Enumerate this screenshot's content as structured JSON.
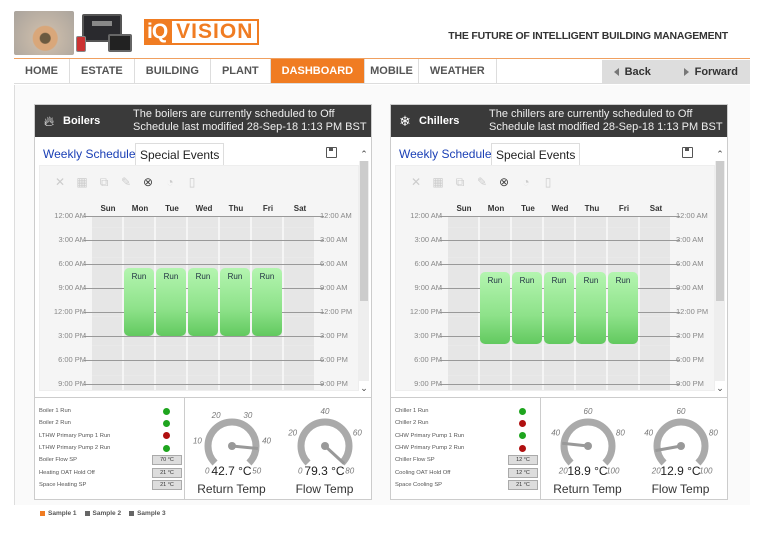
{
  "header": {
    "logo_iq": "iQ",
    "logo_vision": "VISION",
    "tagline": "THE FUTURE OF INTELLIGENT BUILDING MANAGEMENT"
  },
  "nav": {
    "items": [
      "HOME",
      "ESTATE",
      "BUILDING",
      "PLANT",
      "DASHBOARD",
      "MOBILE",
      "WEATHER"
    ],
    "active": "DASHBOARD",
    "back_label": "Back",
    "forward_label": "Forward"
  },
  "colors": {
    "accent": "#f07c22",
    "title_bar": "#3a3a3a",
    "run_green": "#8ee28a",
    "status_green": "#1ea51e",
    "status_red": "#b01010"
  },
  "schedule_common": {
    "tab_weekly": "Weekly Schedule",
    "tab_special": "Special Events",
    "days": [
      "Sun",
      "Mon",
      "Tue",
      "Wed",
      "Thu",
      "Fri",
      "Sat"
    ],
    "times": [
      "12:00 AM",
      "3:00 AM",
      "6:00 AM",
      "9:00 AM",
      "12:00 PM",
      "3:00 PM",
      "6:00 PM",
      "9:00 PM"
    ],
    "toolbar_icons": [
      "delete-icon",
      "table-icon",
      "copy-icon",
      "edit-icon",
      "clear-icon",
      "toggle-icon",
      "paste-icon"
    ]
  },
  "boilers": {
    "title": "Boilers",
    "msg1": "The boilers are currently scheduled to Off",
    "msg2": "Schedule last modified 28-Sep-18 1:13 PM BST",
    "run_label": "Run",
    "run_days": [
      "Mon",
      "Tue",
      "Wed",
      "Thu",
      "Fri"
    ],
    "run_start": "6:30 AM",
    "run_end": "3:00 PM",
    "status": [
      {
        "label": "Boiler 1 Run",
        "type": "dot",
        "state": "green"
      },
      {
        "label": "Boiler 2 Run",
        "type": "dot",
        "state": "green"
      },
      {
        "label": "LTHW Primary Pump 1 Run",
        "type": "dot",
        "state": "red"
      },
      {
        "label": "LTHW Primary Pump 2 Run",
        "type": "dot",
        "state": "green"
      },
      {
        "label": "Boiler Flow SP",
        "type": "value",
        "value": "70 °C"
      },
      {
        "label": "Heating OAT Hold Off",
        "type": "value",
        "value": "21 °C"
      },
      {
        "label": "Space Heating SP",
        "type": "value",
        "value": "21 °C"
      }
    ],
    "gauges": [
      {
        "label": "Return Temp",
        "value": "42.7 °C",
        "num": 42.7,
        "min": 0,
        "max": 50,
        "ticks": [
          "0",
          "10",
          "20",
          "30",
          "40",
          "50"
        ]
      },
      {
        "label": "Flow Temp",
        "value": "79.3 °C",
        "num": 79.3,
        "min": 0,
        "max": 80,
        "ticks": [
          "0",
          "20",
          "40",
          "60",
          "80"
        ]
      }
    ]
  },
  "chillers": {
    "title": "Chillers",
    "msg1": "The chillers are currently scheduled to Off",
    "msg2": "Schedule last modified 28-Sep-18 1:13 PM BST",
    "run_label": "Run",
    "run_days": [
      "Mon",
      "Tue",
      "Wed",
      "Thu",
      "Fri"
    ],
    "run_start": "7:00 AM",
    "run_end": "4:00 PM",
    "status": [
      {
        "label": "Chiller 1 Run",
        "type": "dot",
        "state": "green"
      },
      {
        "label": "Chiller 2 Run",
        "type": "dot",
        "state": "red"
      },
      {
        "label": "CHW Primary Pump 1 Run",
        "type": "dot",
        "state": "green"
      },
      {
        "label": "CHW Primary Pump 2 Run",
        "type": "dot",
        "state": "red"
      },
      {
        "label": "Chiller Flow SP",
        "type": "value",
        "value": "12 °C"
      },
      {
        "label": "Cooling OAT Hold Off",
        "type": "value",
        "value": "12 °C"
      },
      {
        "label": "Space Cooling SP",
        "type": "value",
        "value": "21 °C"
      }
    ],
    "gauges": [
      {
        "label": "Return Temp",
        "value": "18.9 °C",
        "num": 18.9,
        "min": 0,
        "max": 100,
        "ticks": [
          "20",
          "40",
          "60",
          "80",
          "100"
        ]
      },
      {
        "label": "Flow Temp",
        "value": "12.9 °C",
        "num": 12.9,
        "min": 0,
        "max": 100,
        "ticks": [
          "20",
          "40",
          "60",
          "80",
          "100"
        ]
      }
    ]
  },
  "legend": [
    {
      "label": "Sample 1",
      "color": "#f07c22"
    },
    {
      "label": "Sample 2",
      "color": "#666666"
    },
    {
      "label": "Sample 3",
      "color": "#666666"
    }
  ]
}
